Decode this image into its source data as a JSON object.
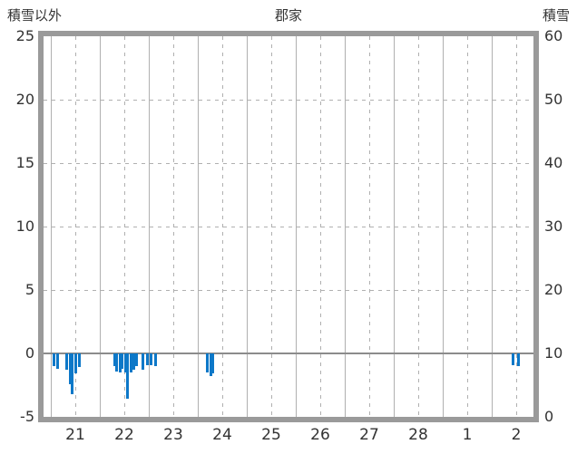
{
  "header": {
    "left_label": "積雪以外",
    "title": "郡家",
    "right_label": "積雪"
  },
  "colors": {
    "bar_color": "#0d78c8",
    "grid_color": "#b0b0b0",
    "border_color": "#9a9a9a",
    "zero_line_color": "#8c8c8c",
    "text_color": "#333333"
  },
  "chart_data": {
    "type": "bar",
    "title": "郡家",
    "subtitle": "",
    "legend": [],
    "grid": true,
    "left_axis": {
      "label": "積雪以外",
      "min": -5,
      "max": 25,
      "ticks": [
        25,
        20,
        15,
        10,
        5,
        0,
        -5
      ]
    },
    "right_axis": {
      "label": "積雪",
      "min": 0,
      "max": 60,
      "ticks": [
        60,
        50,
        40,
        30,
        20,
        10,
        0
      ]
    },
    "x_axis": {
      "labels": [
        "21",
        "22",
        "23",
        "24",
        "25",
        "26",
        "27",
        "28",
        "1",
        "2"
      ],
      "lead_fraction": 0.148,
      "tail_fraction": 0.852
    },
    "series": [
      {
        "name": "積雪以外",
        "axis": "left",
        "color": "#0d78c8",
        "bars": [
          {
            "day": 0.06,
            "value": -1.0
          },
          {
            "day": 0.13,
            "value": -1.2
          },
          {
            "day": 0.33,
            "value": -1.3
          },
          {
            "day": 0.39,
            "value": -2.4
          },
          {
            "day": 0.44,
            "value": -3.2
          },
          {
            "day": 0.5,
            "value": -1.6
          },
          {
            "day": 0.59,
            "value": -1.1
          },
          {
            "day": 1.3,
            "value": -1.0
          },
          {
            "day": 1.35,
            "value": -1.4
          },
          {
            "day": 1.41,
            "value": -1.5
          },
          {
            "day": 1.46,
            "value": -1.2
          },
          {
            "day": 1.52,
            "value": -1.5
          },
          {
            "day": 1.57,
            "value": -3.6
          },
          {
            "day": 1.63,
            "value": -1.5
          },
          {
            "day": 1.69,
            "value": -1.3
          },
          {
            "day": 1.74,
            "value": -1.0
          },
          {
            "day": 1.87,
            "value": -1.3
          },
          {
            "day": 1.98,
            "value": -0.9
          },
          {
            "day": 2.04,
            "value": -0.9
          },
          {
            "day": 2.13,
            "value": -1.0
          },
          {
            "day": 3.2,
            "value": -1.5
          },
          {
            "day": 3.26,
            "value": -1.8
          },
          {
            "day": 3.31,
            "value": -1.6
          },
          {
            "day": 9.43,
            "value": -0.9
          },
          {
            "day": 9.54,
            "value": -1.0
          }
        ]
      },
      {
        "name": "積雪",
        "axis": "right",
        "color": "#0d78c8",
        "bars": []
      }
    ]
  }
}
